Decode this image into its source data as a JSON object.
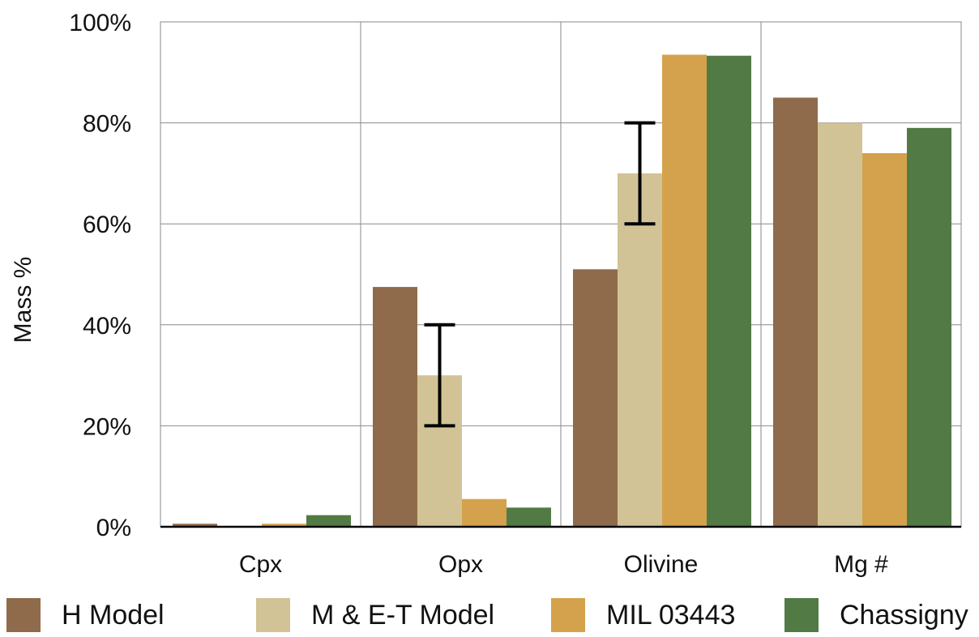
{
  "chart_data": {
    "type": "bar",
    "title": "",
    "xlabel": "",
    "ylabel": "Mass %",
    "ylim": [
      0,
      100
    ],
    "yticks": [
      "0%",
      "20%",
      "40%",
      "60%",
      "80%",
      "100%"
    ],
    "grid": true,
    "legend_position": "bottom",
    "categories": [
      "Cpx",
      "Opx",
      "Olivine",
      "Mg #"
    ],
    "series": [
      {
        "name": "H Model",
        "color": "#8f6b4b",
        "values": [
          0.6,
          47.5,
          51,
          85
        ]
      },
      {
        "name": "M & E-T Model",
        "color": "#d2c396",
        "values": [
          0,
          30,
          70,
          80
        ],
        "error_bars": [
          null,
          [
            20,
            40
          ],
          [
            60,
            80
          ],
          null
        ]
      },
      {
        "name": "MIL 03443",
        "color": "#d4a24c",
        "values": [
          0.6,
          5.5,
          93.5,
          74
        ]
      },
      {
        "name": "Chassigny",
        "color": "#527a45",
        "values": [
          2.3,
          3.8,
          93.3,
          79
        ]
      }
    ]
  }
}
